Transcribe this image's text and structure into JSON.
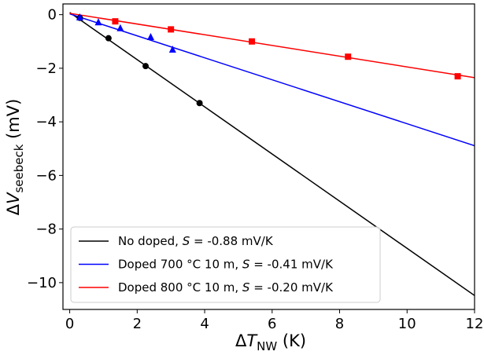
{
  "chart_data": {
    "type": "scatter",
    "xlim": [
      -0.2,
      12
    ],
    "ylim": [
      -11,
      0.4
    ],
    "x_ticks": [
      0,
      2,
      4,
      6,
      8,
      10,
      12
    ],
    "y_ticks": [
      0,
      -2,
      -4,
      -6,
      -8,
      -10
    ],
    "x_tick_labels": [
      "0",
      "2",
      "4",
      "6",
      "8",
      "10",
      "12"
    ],
    "y_tick_labels": [
      "0",
      "−2",
      "−4",
      "−6",
      "−8",
      "−10"
    ],
    "xlabel": {
      "prefix": "Δ",
      "main": "T",
      "sub": "NW",
      "suffix": " (K)"
    },
    "ylabel": {
      "prefix": "Δ",
      "main": "V",
      "sub": "seebeck",
      "suffix": " (mV)"
    },
    "legend_position": "lower-left",
    "series": [
      {
        "name": "No doped",
        "legend": {
          "prefix": "No doped, ",
          "symbol": "S",
          "suffix": " = -0.88 mV/K"
        },
        "color": "#000000",
        "marker": "circle",
        "fit": {
          "slope": -0.88,
          "intercept": 0.08,
          "x_range": [
            0,
            12
          ]
        },
        "x": [
          0.3,
          1.15,
          2.25,
          3.85
        ],
        "y": [
          -0.12,
          -0.88,
          -1.92,
          -3.3
        ]
      },
      {
        "name": "Doped 700 °C 10 m",
        "legend": {
          "prefix": "Doped 700 °C 10 m, ",
          "symbol": "S",
          "suffix": " = -0.41 mV/K"
        },
        "color": "#0000ff",
        "marker": "triangle",
        "fit": {
          "slope": -0.41,
          "intercept": 0.03,
          "x_range": [
            0,
            12
          ]
        },
        "x": [
          0.3,
          0.85,
          1.5,
          2.4,
          3.05
        ],
        "y": [
          -0.1,
          -0.28,
          -0.5,
          -0.83,
          -1.3
        ]
      },
      {
        "name": "Doped 800 °C 10 m",
        "legend": {
          "prefix": "Doped 800 °C 10 m, ",
          "symbol": "S",
          "suffix": " = -0.20 mV/K"
        },
        "color": "#ff0000",
        "marker": "square",
        "fit": {
          "slope": -0.2,
          "intercept": 0.05,
          "x_range": [
            0,
            12
          ]
        },
        "x": [
          1.35,
          3.0,
          5.4,
          8.25,
          11.5
        ],
        "y": [
          -0.25,
          -0.55,
          -1.0,
          -1.57,
          -2.3
        ]
      }
    ]
  }
}
